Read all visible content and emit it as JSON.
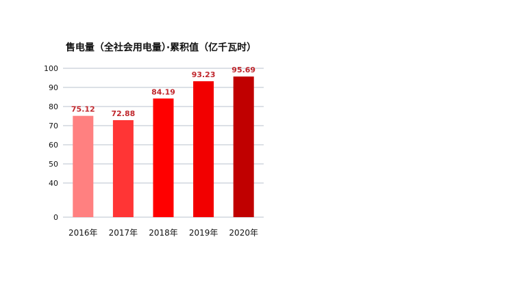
{
  "chart_data": {
    "type": "bar",
    "title": "售电量（全社会用电量）·累积值（亿千瓦时）",
    "categories": [
      "2016年",
      "2017年",
      "2018年",
      "2019年",
      "2020年"
    ],
    "values": [
      75.12,
      72.88,
      84.19,
      93.23,
      95.69
    ],
    "value_labels": [
      "75.12",
      "72.88",
      "84.19",
      "93.23",
      "95.69"
    ],
    "bar_colors": [
      "#ff8080",
      "#ff3535",
      "#ff0000",
      "#f20000",
      "#c00000"
    ],
    "label_color": "#c0272d",
    "yticks": [
      0,
      40,
      50,
      60,
      70,
      80,
      90,
      100
    ],
    "y_axis_break": {
      "from": 0,
      "to": 40
    },
    "ylim": [
      0,
      100
    ],
    "xlabel": "",
    "ylabel": "",
    "grid": true,
    "legend": "none"
  }
}
